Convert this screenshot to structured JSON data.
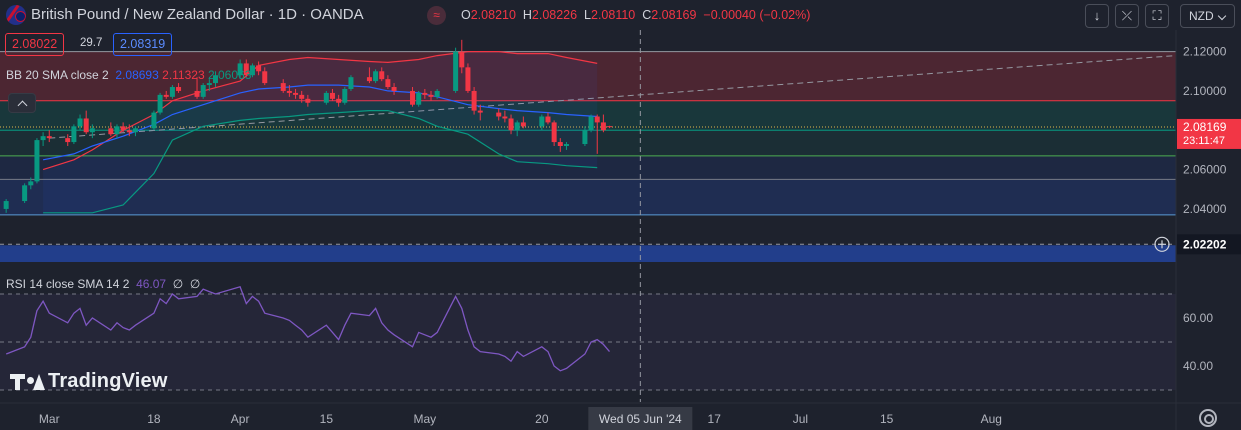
{
  "header": {
    "title": "British Pound / New Zealand Dollar · 1D · OANDA",
    "source_badge": "≈",
    "ohlc": [
      {
        "k": "O",
        "v": "2.08210"
      },
      {
        "k": "H",
        "v": "2.08226"
      },
      {
        "k": "L",
        "v": "2.08110"
      },
      {
        "k": "C",
        "v": "2.08169"
      }
    ],
    "change": "−0.00040 (−0.02%)",
    "currency": "NZD",
    "toolbar_icons": [
      "arrow-down-icon",
      "collapse-arrows-icon",
      "fullscreen-icon"
    ]
  },
  "trade": {
    "bid": "2.08022",
    "spread": "29.7",
    "ask": "2.08319"
  },
  "bb_legend": {
    "name": "BB 20 SMA close 2",
    "basis": "2.08693",
    "upper": "2.11323",
    "lower": "2.06063"
  },
  "rsi_legend": {
    "name": "RSI 14 close SMA 14 2",
    "value": "46.07",
    "extra1": "∅",
    "extra2": "∅"
  },
  "logo": "TradingView",
  "price_axis": {
    "labels": [
      "2.12000",
      "2.10000",
      "2.08000",
      "2.06000",
      "2.04000"
    ],
    "last_price": "2.08169",
    "countdown": "23:11:47",
    "crosshair_price": "2.02202"
  },
  "rsi_axis": {
    "labels": [
      "60.00",
      "40.00"
    ]
  },
  "time_axis": {
    "labels": [
      "Mar",
      "18",
      "Apr",
      "15",
      "May",
      "20",
      "17",
      "Jul",
      "15",
      "Aug"
    ],
    "crosshair_date": "Wed 05 Jun '24"
  },
  "colors": {
    "up": "#089981",
    "down": "#f23645",
    "bb_basis": "#2962ff",
    "bb_upper": "#f23645",
    "bb_lower": "#089981",
    "rsi": "#7e57c2",
    "background": "#1e222d"
  },
  "chart_data": [
    {
      "type": "candlestick",
      "title": "British Pound / New Zealand Dollar · 1D · OANDA",
      "y_range": [
        2.013,
        2.131
      ],
      "x_range": [
        "2024-02-22",
        "2024-08-31"
      ],
      "grid": false,
      "candles": [
        {
          "d": "2024-02-23",
          "o": 2.04,
          "h": 2.045,
          "l": 2.038,
          "c": 2.044
        },
        {
          "d": "2024-02-26",
          "o": 2.044,
          "h": 2.053,
          "l": 2.043,
          "c": 2.052
        },
        {
          "d": "2024-02-27",
          "o": 2.052,
          "h": 2.056,
          "l": 2.05,
          "c": 2.054
        },
        {
          "d": "2024-02-28",
          "o": 2.054,
          "h": 2.076,
          "l": 2.053,
          "c": 2.075
        },
        {
          "d": "2024-02-29",
          "o": 2.075,
          "h": 2.079,
          "l": 2.072,
          "c": 2.077
        },
        {
          "d": "2024-03-01",
          "o": 2.077,
          "h": 2.08,
          "l": 2.074,
          "c": 2.076
        },
        {
          "d": "2024-03-04",
          "o": 2.076,
          "h": 2.078,
          "l": 2.072,
          "c": 2.074
        },
        {
          "d": "2024-03-05",
          "o": 2.074,
          "h": 2.083,
          "l": 2.073,
          "c": 2.082
        },
        {
          "d": "2024-03-06",
          "o": 2.082,
          "h": 2.088,
          "l": 2.08,
          "c": 2.086
        },
        {
          "d": "2024-03-07",
          "o": 2.086,
          "h": 2.09,
          "l": 2.078,
          "c": 2.079
        },
        {
          "d": "2024-03-08",
          "o": 2.079,
          "h": 2.083,
          "l": 2.076,
          "c": 2.081
        },
        {
          "d": "2024-03-11",
          "o": 2.081,
          "h": 2.084,
          "l": 2.077,
          "c": 2.078
        },
        {
          "d": "2024-03-12",
          "o": 2.078,
          "h": 2.083,
          "l": 2.076,
          "c": 2.082
        },
        {
          "d": "2024-03-13",
          "o": 2.082,
          "h": 2.084,
          "l": 2.079,
          "c": 2.08
        },
        {
          "d": "2024-03-14",
          "o": 2.08,
          "h": 2.083,
          "l": 2.077,
          "c": 2.079
        },
        {
          "d": "2024-03-15",
          "o": 2.079,
          "h": 2.082,
          "l": 2.077,
          "c": 2.081
        },
        {
          "d": "2024-03-18",
          "o": 2.081,
          "h": 2.09,
          "l": 2.08,
          "c": 2.089
        },
        {
          "d": "2024-03-19",
          "o": 2.089,
          "h": 2.099,
          "l": 2.088,
          "c": 2.098
        },
        {
          "d": "2024-03-20",
          "o": 2.098,
          "h": 2.1,
          "l": 2.096,
          "c": 2.097
        },
        {
          "d": "2024-03-21",
          "o": 2.097,
          "h": 2.103,
          "l": 2.096,
          "c": 2.102
        },
        {
          "d": "2024-03-22",
          "o": 2.102,
          "h": 2.104,
          "l": 2.099,
          "c": 2.1
        },
        {
          "d": "2024-03-25",
          "o": 2.1,
          "h": 2.107,
          "l": 2.096,
          "c": 2.097
        },
        {
          "d": "2024-03-26",
          "o": 2.097,
          "h": 2.104,
          "l": 2.096,
          "c": 2.103
        },
        {
          "d": "2024-03-27",
          "o": 2.103,
          "h": 2.106,
          "l": 2.1,
          "c": 2.104
        },
        {
          "d": "2024-03-28",
          "o": 2.104,
          "h": 2.11,
          "l": 2.102,
          "c": 2.108
        },
        {
          "d": "2024-04-01",
          "o": 2.108,
          "h": 2.116,
          "l": 2.106,
          "c": 2.114
        },
        {
          "d": "2024-04-02",
          "o": 2.114,
          "h": 2.116,
          "l": 2.107,
          "c": 2.108
        },
        {
          "d": "2024-04-03",
          "o": 2.108,
          "h": 2.114,
          "l": 2.107,
          "c": 2.113
        },
        {
          "d": "2024-04-04",
          "o": 2.113,
          "h": 2.115,
          "l": 2.108,
          "c": 2.11
        },
        {
          "d": "2024-04-05",
          "o": 2.11,
          "h": 2.112,
          "l": 2.103,
          "c": 2.104
        },
        {
          "d": "2024-04-08",
          "o": 2.104,
          "h": 2.106,
          "l": 2.099,
          "c": 2.1
        },
        {
          "d": "2024-04-09",
          "o": 2.1,
          "h": 2.103,
          "l": 2.097,
          "c": 2.099
        },
        {
          "d": "2024-04-10",
          "o": 2.099,
          "h": 2.101,
          "l": 2.096,
          "c": 2.098
        },
        {
          "d": "2024-04-11",
          "o": 2.098,
          "h": 2.1,
          "l": 2.094,
          "c": 2.096
        },
        {
          "d": "2024-04-12",
          "o": 2.096,
          "h": 2.098,
          "l": 2.092,
          "c": 2.094
        },
        {
          "d": "2024-04-15",
          "o": 2.094,
          "h": 2.1,
          "l": 2.093,
          "c": 2.099
        },
        {
          "d": "2024-04-16",
          "o": 2.099,
          "h": 2.101,
          "l": 2.095,
          "c": 2.096
        },
        {
          "d": "2024-04-17",
          "o": 2.096,
          "h": 2.098,
          "l": 2.092,
          "c": 2.094
        },
        {
          "d": "2024-04-18",
          "o": 2.094,
          "h": 2.102,
          "l": 2.093,
          "c": 2.101
        },
        {
          "d": "2024-04-19",
          "o": 2.101,
          "h": 2.108,
          "l": 2.1,
          "c": 2.107
        },
        {
          "d": "2024-04-22",
          "o": 2.107,
          "h": 2.112,
          "l": 2.104,
          "c": 2.105
        },
        {
          "d": "2024-04-23",
          "o": 2.105,
          "h": 2.111,
          "l": 2.104,
          "c": 2.11
        },
        {
          "d": "2024-04-24",
          "o": 2.11,
          "h": 2.112,
          "l": 2.105,
          "c": 2.106
        },
        {
          "d": "2024-04-25",
          "o": 2.106,
          "h": 2.108,
          "l": 2.101,
          "c": 2.102
        },
        {
          "d": "2024-04-26",
          "o": 2.102,
          "h": 2.104,
          "l": 2.098,
          "c": 2.1
        },
        {
          "d": "2024-04-29",
          "o": 2.1,
          "h": 2.102,
          "l": 2.092,
          "c": 2.093
        },
        {
          "d": "2024-04-30",
          "o": 2.093,
          "h": 2.1,
          "l": 2.092,
          "c": 2.099
        },
        {
          "d": "2024-05-01",
          "o": 2.099,
          "h": 2.101,
          "l": 2.096,
          "c": 2.098
        },
        {
          "d": "2024-05-02",
          "o": 2.098,
          "h": 2.1,
          "l": 2.095,
          "c": 2.097
        },
        {
          "d": "2024-05-03",
          "o": 2.097,
          "h": 2.101,
          "l": 2.096,
          "c": 2.1
        },
        {
          "d": "2024-05-06",
          "o": 2.1,
          "h": 2.122,
          "l": 2.099,
          "c": 2.12
        },
        {
          "d": "2024-05-07",
          "o": 2.12,
          "h": 2.126,
          "l": 2.109,
          "c": 2.112
        },
        {
          "d": "2024-05-08",
          "o": 2.112,
          "h": 2.114,
          "l": 2.099,
          "c": 2.1
        },
        {
          "d": "2024-05-09",
          "o": 2.1,
          "h": 2.102,
          "l": 2.088,
          "c": 2.09
        },
        {
          "d": "2024-05-10",
          "o": 2.09,
          "h": 2.093,
          "l": 2.085,
          "c": 2.089
        },
        {
          "d": "2024-05-13",
          "o": 2.089,
          "h": 2.091,
          "l": 2.085,
          "c": 2.087
        },
        {
          "d": "2024-05-14",
          "o": 2.087,
          "h": 2.09,
          "l": 2.084,
          "c": 2.086
        },
        {
          "d": "2024-05-15",
          "o": 2.086,
          "h": 2.088,
          "l": 2.078,
          "c": 2.08
        },
        {
          "d": "2024-05-16",
          "o": 2.08,
          "h": 2.085,
          "l": 2.077,
          "c": 2.084
        },
        {
          "d": "2024-05-17",
          "o": 2.084,
          "h": 2.087,
          "l": 2.081,
          "c": 2.082
        },
        {
          "d": "2024-05-20",
          "o": 2.082,
          "h": 2.088,
          "l": 2.08,
          "c": 2.087
        },
        {
          "d": "2024-05-21",
          "o": 2.087,
          "h": 2.089,
          "l": 2.083,
          "c": 2.084
        },
        {
          "d": "2024-05-22",
          "o": 2.084,
          "h": 2.085,
          "l": 2.072,
          "c": 2.074
        },
        {
          "d": "2024-05-23",
          "o": 2.074,
          "h": 2.076,
          "l": 2.069,
          "c": 2.072
        },
        {
          "d": "2024-05-24",
          "o": 2.072,
          "h": 2.074,
          "l": 2.07,
          "c": 2.073
        },
        {
          "d": "2024-05-27",
          "o": 2.073,
          "h": 2.082,
          "l": 2.072,
          "c": 2.08
        },
        {
          "d": "2024-05-28",
          "o": 2.08,
          "h": 2.088,
          "l": 2.079,
          "c": 2.087
        },
        {
          "d": "2024-05-29",
          "o": 2.087,
          "h": 2.088,
          "l": 2.068,
          "c": 2.084
        },
        {
          "d": "2024-05-30",
          "o": 2.084,
          "h": 2.088,
          "l": 2.079,
          "c": 2.08
        },
        {
          "d": "2024-05-31",
          "o": 2.0821,
          "h": 2.0823,
          "l": 2.0811,
          "c": 2.0817
        }
      ],
      "bollinger_bands": {
        "name": "BB 20 SMA close 2",
        "upper": [
          2.06,
          2.065,
          2.07,
          2.08,
          2.088,
          2.095,
          2.1,
          2.105,
          2.113,
          2.116,
          2.117,
          2.116,
          2.115,
          2.1145,
          2.116,
          2.118,
          2.12,
          2.12,
          2.119,
          2.119,
          2.117,
          2.114
        ],
        "basis": [
          2.065,
          2.068,
          2.072,
          2.077,
          2.083,
          2.088,
          2.093,
          2.099,
          2.101,
          2.102,
          2.103,
          2.103,
          2.102,
          2.1,
          2.099,
          2.097,
          2.093,
          2.091,
          2.09,
          2.089,
          2.088,
          2.087
        ],
        "lower": [
          2.038,
          2.038,
          2.038,
          2.042,
          2.058,
          2.075,
          2.082,
          2.085,
          2.086,
          2.087,
          2.088,
          2.089,
          2.09,
          2.09,
          2.086,
          2.082,
          2.078,
          2.068,
          2.064,
          2.063,
          2.062,
          2.061
        ]
      },
      "trend_line": {
        "from": [
          "2024-03-01",
          2.076
        ],
        "to": [
          "2024-08-31",
          2.118
        ],
        "style": "dashed"
      },
      "horizontal_levels": [
        2.12,
        2.095,
        2.08,
        2.067,
        2.055,
        2.037,
        2.022
      ],
      "last_price": 2.08169
    },
    {
      "type": "line",
      "title": "RSI 14 close SMA 14 2",
      "y_range": [
        25,
        80
      ],
      "x_range": [
        "2024-02-22",
        "2024-08-31"
      ],
      "levels": [
        70,
        50,
        30
      ],
      "series": [
        {
          "name": "RSI",
          "x": [
            "2024-02-23",
            "2024-02-26",
            "2024-02-27",
            "2024-02-28",
            "2024-02-29",
            "2024-03-01",
            "2024-03-04",
            "2024-03-05",
            "2024-03-06",
            "2024-03-07",
            "2024-03-08",
            "2024-03-11",
            "2024-03-12",
            "2024-03-13",
            "2024-03-14",
            "2024-03-15",
            "2024-03-18",
            "2024-03-19",
            "2024-03-20",
            "2024-03-21",
            "2024-03-22",
            "2024-03-25",
            "2024-03-26",
            "2024-03-27",
            "2024-03-28",
            "2024-04-01",
            "2024-04-02",
            "2024-04-03",
            "2024-04-04",
            "2024-04-05",
            "2024-04-08",
            "2024-04-09",
            "2024-04-10",
            "2024-04-11",
            "2024-04-12",
            "2024-04-15",
            "2024-04-16",
            "2024-04-17",
            "2024-04-18",
            "2024-04-19",
            "2024-04-22",
            "2024-04-23",
            "2024-04-24",
            "2024-04-25",
            "2024-04-26",
            "2024-04-29",
            "2024-04-30",
            "2024-05-01",
            "2024-05-02",
            "2024-05-03",
            "2024-05-06",
            "2024-05-07",
            "2024-05-08",
            "2024-05-09",
            "2024-05-10",
            "2024-05-13",
            "2024-05-14",
            "2024-05-15",
            "2024-05-16",
            "2024-05-17",
            "2024-05-20",
            "2024-05-21",
            "2024-05-22",
            "2024-05-23",
            "2024-05-24",
            "2024-05-27",
            "2024-05-28",
            "2024-05-29",
            "2024-05-30",
            "2024-05-31"
          ],
          "values": [
            45,
            48,
            52,
            63,
            67,
            62,
            58,
            62,
            64,
            57,
            60,
            55,
            58,
            56,
            55,
            57,
            62,
            68,
            66,
            70,
            68,
            69,
            72,
            71,
            70,
            73,
            66,
            69,
            67,
            62,
            60,
            59,
            57,
            55,
            52,
            57,
            54,
            51,
            57,
            62,
            61,
            64,
            58,
            55,
            53,
            48,
            54,
            53,
            52,
            54,
            69,
            64,
            55,
            48,
            46,
            45,
            44,
            42,
            46,
            44,
            48,
            46,
            40,
            38,
            39,
            45,
            50,
            51,
            49,
            46
          ]
        }
      ]
    }
  ]
}
